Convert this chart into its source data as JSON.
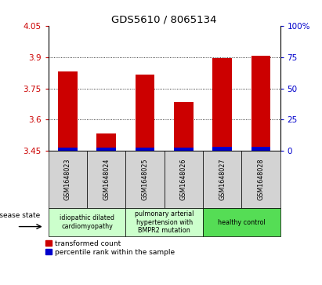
{
  "title": "GDS5610 / 8065134",
  "samples": [
    "GSM1648023",
    "GSM1648024",
    "GSM1648025",
    "GSM1648026",
    "GSM1648027",
    "GSM1648028"
  ],
  "red_values": [
    3.83,
    3.535,
    3.815,
    3.685,
    3.895,
    3.905
  ],
  "blue_values": [
    3.467,
    3.467,
    3.468,
    3.467,
    3.469,
    3.469
  ],
  "base_value": 3.45,
  "ymin": 3.45,
  "ymax": 4.05,
  "yticks": [
    3.45,
    3.6,
    3.75,
    3.9,
    4.05
  ],
  "ytick_labels": [
    "3.45",
    "3.6",
    "3.75",
    "3.9",
    "4.05"
  ],
  "right_yticks": [
    0,
    25,
    50,
    75,
    100
  ],
  "right_ytick_labels": [
    "0",
    "25",
    "50",
    "75",
    "100%"
  ],
  "grid_lines": [
    3.6,
    3.75,
    3.9
  ],
  "bar_color_red": "#cc0000",
  "bar_color_blue": "#0000cc",
  "bar_width": 0.5,
  "left_axis_color": "#cc0000",
  "right_axis_color": "#0000cc",
  "legend_red_label": "transformed count",
  "legend_blue_label": "percentile rank within the sample",
  "disease_state_label": "disease state",
  "tick_bg_color": "#d3d3d3",
  "group_labels": [
    "idiopathic dilated\ncardiomyopathy",
    "pulmonary arterial\nhypertension with\nBMPR2 mutation",
    "healthy control"
  ],
  "group_ranges": [
    [
      0,
      2
    ],
    [
      2,
      4
    ],
    [
      4,
      6
    ]
  ],
  "group_face_colors": [
    "#ccffcc",
    "#ccffcc",
    "#55dd55"
  ]
}
